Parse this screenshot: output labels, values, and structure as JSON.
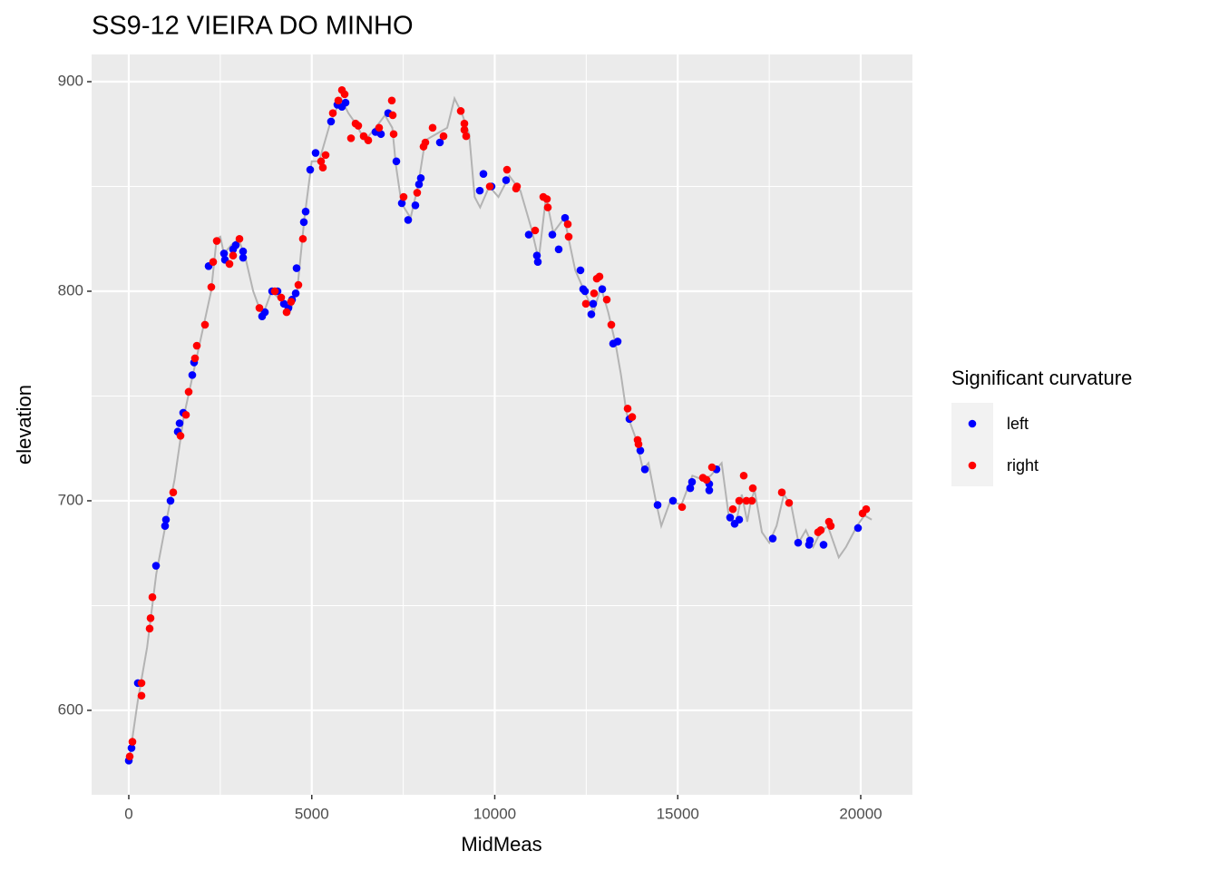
{
  "chart_data": {
    "type": "scatter",
    "title": "SS9-12 VIEIRA DO MINHO",
    "x_label": "MidMeas",
    "y_label": "elevation",
    "legend_title": "Significant curvature",
    "legend": "right",
    "xlim": [
      -1016,
      21413
    ],
    "ylim": [
      559.7,
      913
    ],
    "xticks": [
      0,
      5000,
      10000,
      15000,
      20000
    ],
    "yticks": [
      600,
      700,
      800,
      900
    ],
    "grid": true,
    "minor_grid": true,
    "line": {
      "color": "#b3b3b3",
      "x": [
        0,
        250,
        500,
        750,
        1000,
        1250,
        1500,
        1750,
        2000,
        2250,
        2400,
        2500,
        2600,
        2800,
        3000,
        3200,
        3400,
        3650,
        3900,
        4200,
        4400,
        4600,
        4800,
        5000,
        5200,
        5500,
        5800,
        6000,
        6200,
        6450,
        6700,
        7000,
        7200,
        7300,
        7450,
        7700,
        7900,
        8100,
        8400,
        8700,
        8900,
        9100,
        9300,
        9450,
        9600,
        9850,
        10100,
        10400,
        10700,
        11000,
        11200,
        11400,
        11600,
        11900,
        12200,
        12500,
        12700,
        12900,
        13100,
        13300,
        13450,
        13600,
        13850,
        14050,
        14200,
        14400,
        14550,
        14800,
        15100,
        15400,
        15700,
        15900,
        16200,
        16400,
        16600,
        16750,
        16900,
        17000,
        17100,
        17300,
        17500,
        17700,
        17900,
        18100,
        18300,
        18500,
        18700,
        18900,
        19100,
        19400,
        19600,
        19900,
        20100,
        20300
      ],
      "values": [
        575,
        605,
        630,
        665,
        688,
        710,
        740,
        760,
        780,
        800,
        825,
        826,
        818,
        822,
        825,
        815,
        800,
        788,
        800,
        795,
        790,
        800,
        835,
        862,
        862,
        880,
        892,
        885,
        880,
        872,
        877,
        884,
        878,
        860,
        842,
        835,
        850,
        872,
        875,
        878,
        892,
        885,
        875,
        845,
        840,
        850,
        845,
        855,
        848,
        830,
        815,
        845,
        828,
        835,
        810,
        798,
        790,
        802,
        790,
        775,
        760,
        742,
        730,
        715,
        718,
        700,
        688,
        700,
        698,
        712,
        710,
        712,
        718,
        692,
        690,
        703,
        690,
        700,
        705,
        685,
        680,
        688,
        703,
        698,
        680,
        686,
        678,
        685,
        688,
        673,
        678,
        688,
        693,
        691
      ]
    },
    "series": [
      {
        "name": "left",
        "color": "#0000ff",
        "x": [
          0,
          74,
          248,
          991,
          1016,
          1140,
          744,
          1338,
          1388,
          1487,
          1735,
          1784,
          2181,
          2602,
          2627,
          2850,
          2924,
          3123,
          3123,
          3643,
          3718,
          3916,
          4064,
          4238,
          4362,
          4461,
          4561,
          4585,
          4783,
          4833,
          4957,
          5105,
          5526,
          5700,
          5824,
          5923,
          6890,
          6741,
          7088,
          7311,
          7460,
          7633,
          7831,
          7930,
          7980,
          8501,
          9591,
          9690,
          9913,
          10310,
          10929,
          11152,
          11177,
          11574,
          11747,
          11921,
          12342,
          12416,
          12466,
          12639,
          12689,
          12937,
          13234,
          13358,
          13680,
          13978,
          14102,
          14449,
          14870,
          15341,
          15390,
          15861,
          15861,
          16059,
          16431,
          16555,
          16679,
          17596,
          18290,
          18587,
          18612,
          18984,
          19926
        ],
        "values": [
          576,
          582,
          613,
          688,
          691,
          700,
          669,
          733,
          737,
          742,
          760,
          766,
          812,
          818,
          815,
          820,
          822,
          819,
          816,
          788,
          790,
          800,
          800,
          794,
          792,
          796,
          799,
          811,
          833,
          838,
          858,
          866,
          881,
          889,
          888,
          890,
          875,
          876,
          885,
          862,
          842,
          834,
          841,
          851,
          854,
          871,
          848,
          856,
          850,
          853,
          827,
          817,
          814,
          827,
          820,
          835,
          810,
          801,
          800,
          789,
          794,
          801,
          775,
          776,
          739,
          724,
          715,
          698,
          700,
          706,
          709,
          708,
          705,
          715,
          692,
          689,
          691,
          682,
          680,
          679,
          681,
          679,
          687
        ]
      },
      {
        "name": "right",
        "color": "#ff0000",
        "x": [
          25,
          99,
          347,
          347,
          570,
          595,
          645,
          1214,
          1413,
          1562,
          1636,
          1809,
          1859,
          2082,
          2255,
          2305,
          2404,
          2751,
          2850,
          3024,
          3569,
          3990,
          4163,
          4312,
          4436,
          4634,
          4758,
          5254,
          5303,
          5378,
          5576,
          5725,
          5824,
          5898,
          6072,
          6196,
          6270,
          6419,
          6543,
          6840,
          7187,
          7212,
          7237,
          7509,
          7880,
          8054,
          8104,
          8302,
          8600,
          9071,
          9170,
          9170,
          9219,
          9864,
          10335,
          10582,
          10607,
          11103,
          11326,
          11425,
          11450,
          11995,
          12020,
          12490,
          12713,
          12788,
          12862,
          13061,
          13185,
          13631,
          13755,
          13903,
          13928,
          15118,
          15688,
          15787,
          15936,
          16506,
          16679,
          16803,
          16877,
          17026,
          17051,
          17844,
          18042,
          18835,
          18909,
          19132,
          19182,
          20050,
          20149
        ],
        "values": [
          578,
          585,
          613,
          607,
          639,
          644,
          654,
          704,
          731,
          741,
          752,
          768,
          774,
          784,
          802,
          814,
          824,
          813,
          817,
          825,
          792,
          800,
          797,
          790,
          795,
          803,
          825,
          862,
          859,
          865,
          885,
          891,
          896,
          894,
          873,
          880,
          879,
          874,
          872,
          878,
          891,
          884,
          875,
          845,
          847,
          869,
          871,
          878,
          874,
          886,
          880,
          877,
          874,
          850,
          858,
          849,
          850,
          829,
          845,
          844,
          840,
          832,
          826,
          794,
          799,
          806,
          807,
          796,
          784,
          744,
          740,
          729,
          727,
          697,
          711,
          710,
          716,
          696,
          700,
          712,
          700,
          700,
          706,
          704,
          699,
          685,
          686,
          690,
          688,
          694,
          696
        ]
      }
    ]
  }
}
